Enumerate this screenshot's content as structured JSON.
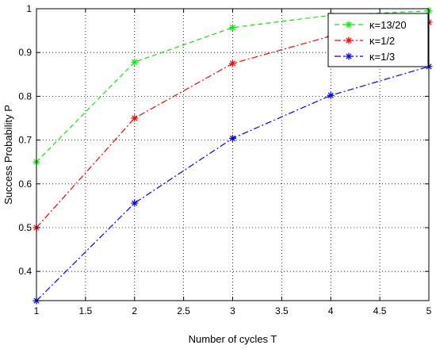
{
  "chart_data": {
    "type": "line",
    "title": "",
    "xlabel": "Number of cycles T",
    "ylabel": "Success Probability P",
    "xlim": [
      1,
      5
    ],
    "ylim": [
      0.3333,
      1
    ],
    "xticks": [
      1,
      1.5,
      2,
      2.5,
      3,
      3.5,
      4,
      4.5,
      5
    ],
    "xtick_labels": [
      "1",
      "1.5",
      "2",
      "2.5",
      "3",
      "3.5",
      "4",
      "4.5",
      "5"
    ],
    "yticks": [
      0.4,
      0.5,
      0.6,
      0.7,
      0.8,
      0.9,
      1
    ],
    "ytick_labels": [
      "0.4",
      "0.5",
      "0.6",
      "0.7",
      "0.8",
      "0.9",
      "1"
    ],
    "grid": true,
    "legend_position": "top-right",
    "x": [
      1,
      2,
      3,
      4,
      5
    ],
    "series": [
      {
        "name": "κ=13/20",
        "color": "#00ee00",
        "dash": "dashed",
        "marker": "star",
        "values": [
          0.65,
          0.878,
          0.957,
          0.985,
          0.995
        ]
      },
      {
        "name": "κ=1/2",
        "color": "#ff0000",
        "dash": "dashdot",
        "marker": "star",
        "values": [
          0.5,
          0.75,
          0.875,
          0.9375,
          0.969
        ]
      },
      {
        "name": "κ=1/3",
        "color": "#0000ff",
        "dash": "dashdot",
        "marker": "star",
        "values": [
          0.333,
          0.556,
          0.704,
          0.802,
          0.868
        ]
      }
    ]
  }
}
